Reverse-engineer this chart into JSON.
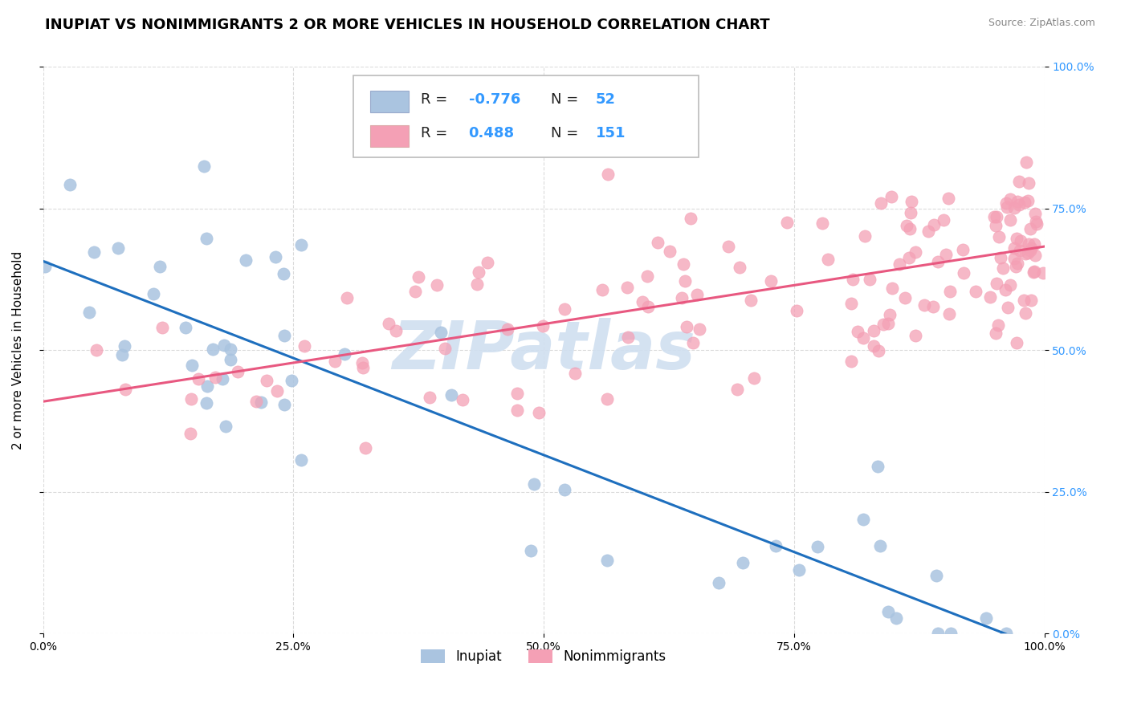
{
  "title": "INUPIAT VS NONIMMIGRANTS 2 OR MORE VEHICLES IN HOUSEHOLD CORRELATION CHART",
  "source": "Source: ZipAtlas.com",
  "ylabel": "2 or more Vehicles in Household",
  "xlim": [
    0,
    1
  ],
  "ylim": [
    0,
    1
  ],
  "xtick_positions": [
    0.0,
    0.25,
    0.5,
    0.75,
    1.0
  ],
  "xtick_labels": [
    "0.0%",
    "25.0%",
    "50.0%",
    "75.0%",
    "100.0%"
  ],
  "ytick_labels": [
    "0.0%",
    "25.0%",
    "50.0%",
    "75.0%",
    "100.0%"
  ],
  "inupiat_color": "#aac4e0",
  "nonimmigrants_color": "#f4a0b5",
  "inupiat_line_color": "#1e6fbe",
  "nonimmigrants_line_color": "#e85880",
  "inupiat_R": -0.776,
  "inupiat_N": 52,
  "nonimmigrants_R": 0.488,
  "nonimmigrants_N": 151,
  "legend_label_inupiat": "Inupiat",
  "legend_label_nonimmigrants": "Nonimmigrants",
  "background_color": "#ffffff",
  "grid_color": "#cccccc",
  "title_fontsize": 13,
  "label_fontsize": 11,
  "tick_fontsize": 10,
  "watermark": "ZIPatlas",
  "watermark_color": "#d0dff0",
  "right_tick_color": "#3399ff"
}
